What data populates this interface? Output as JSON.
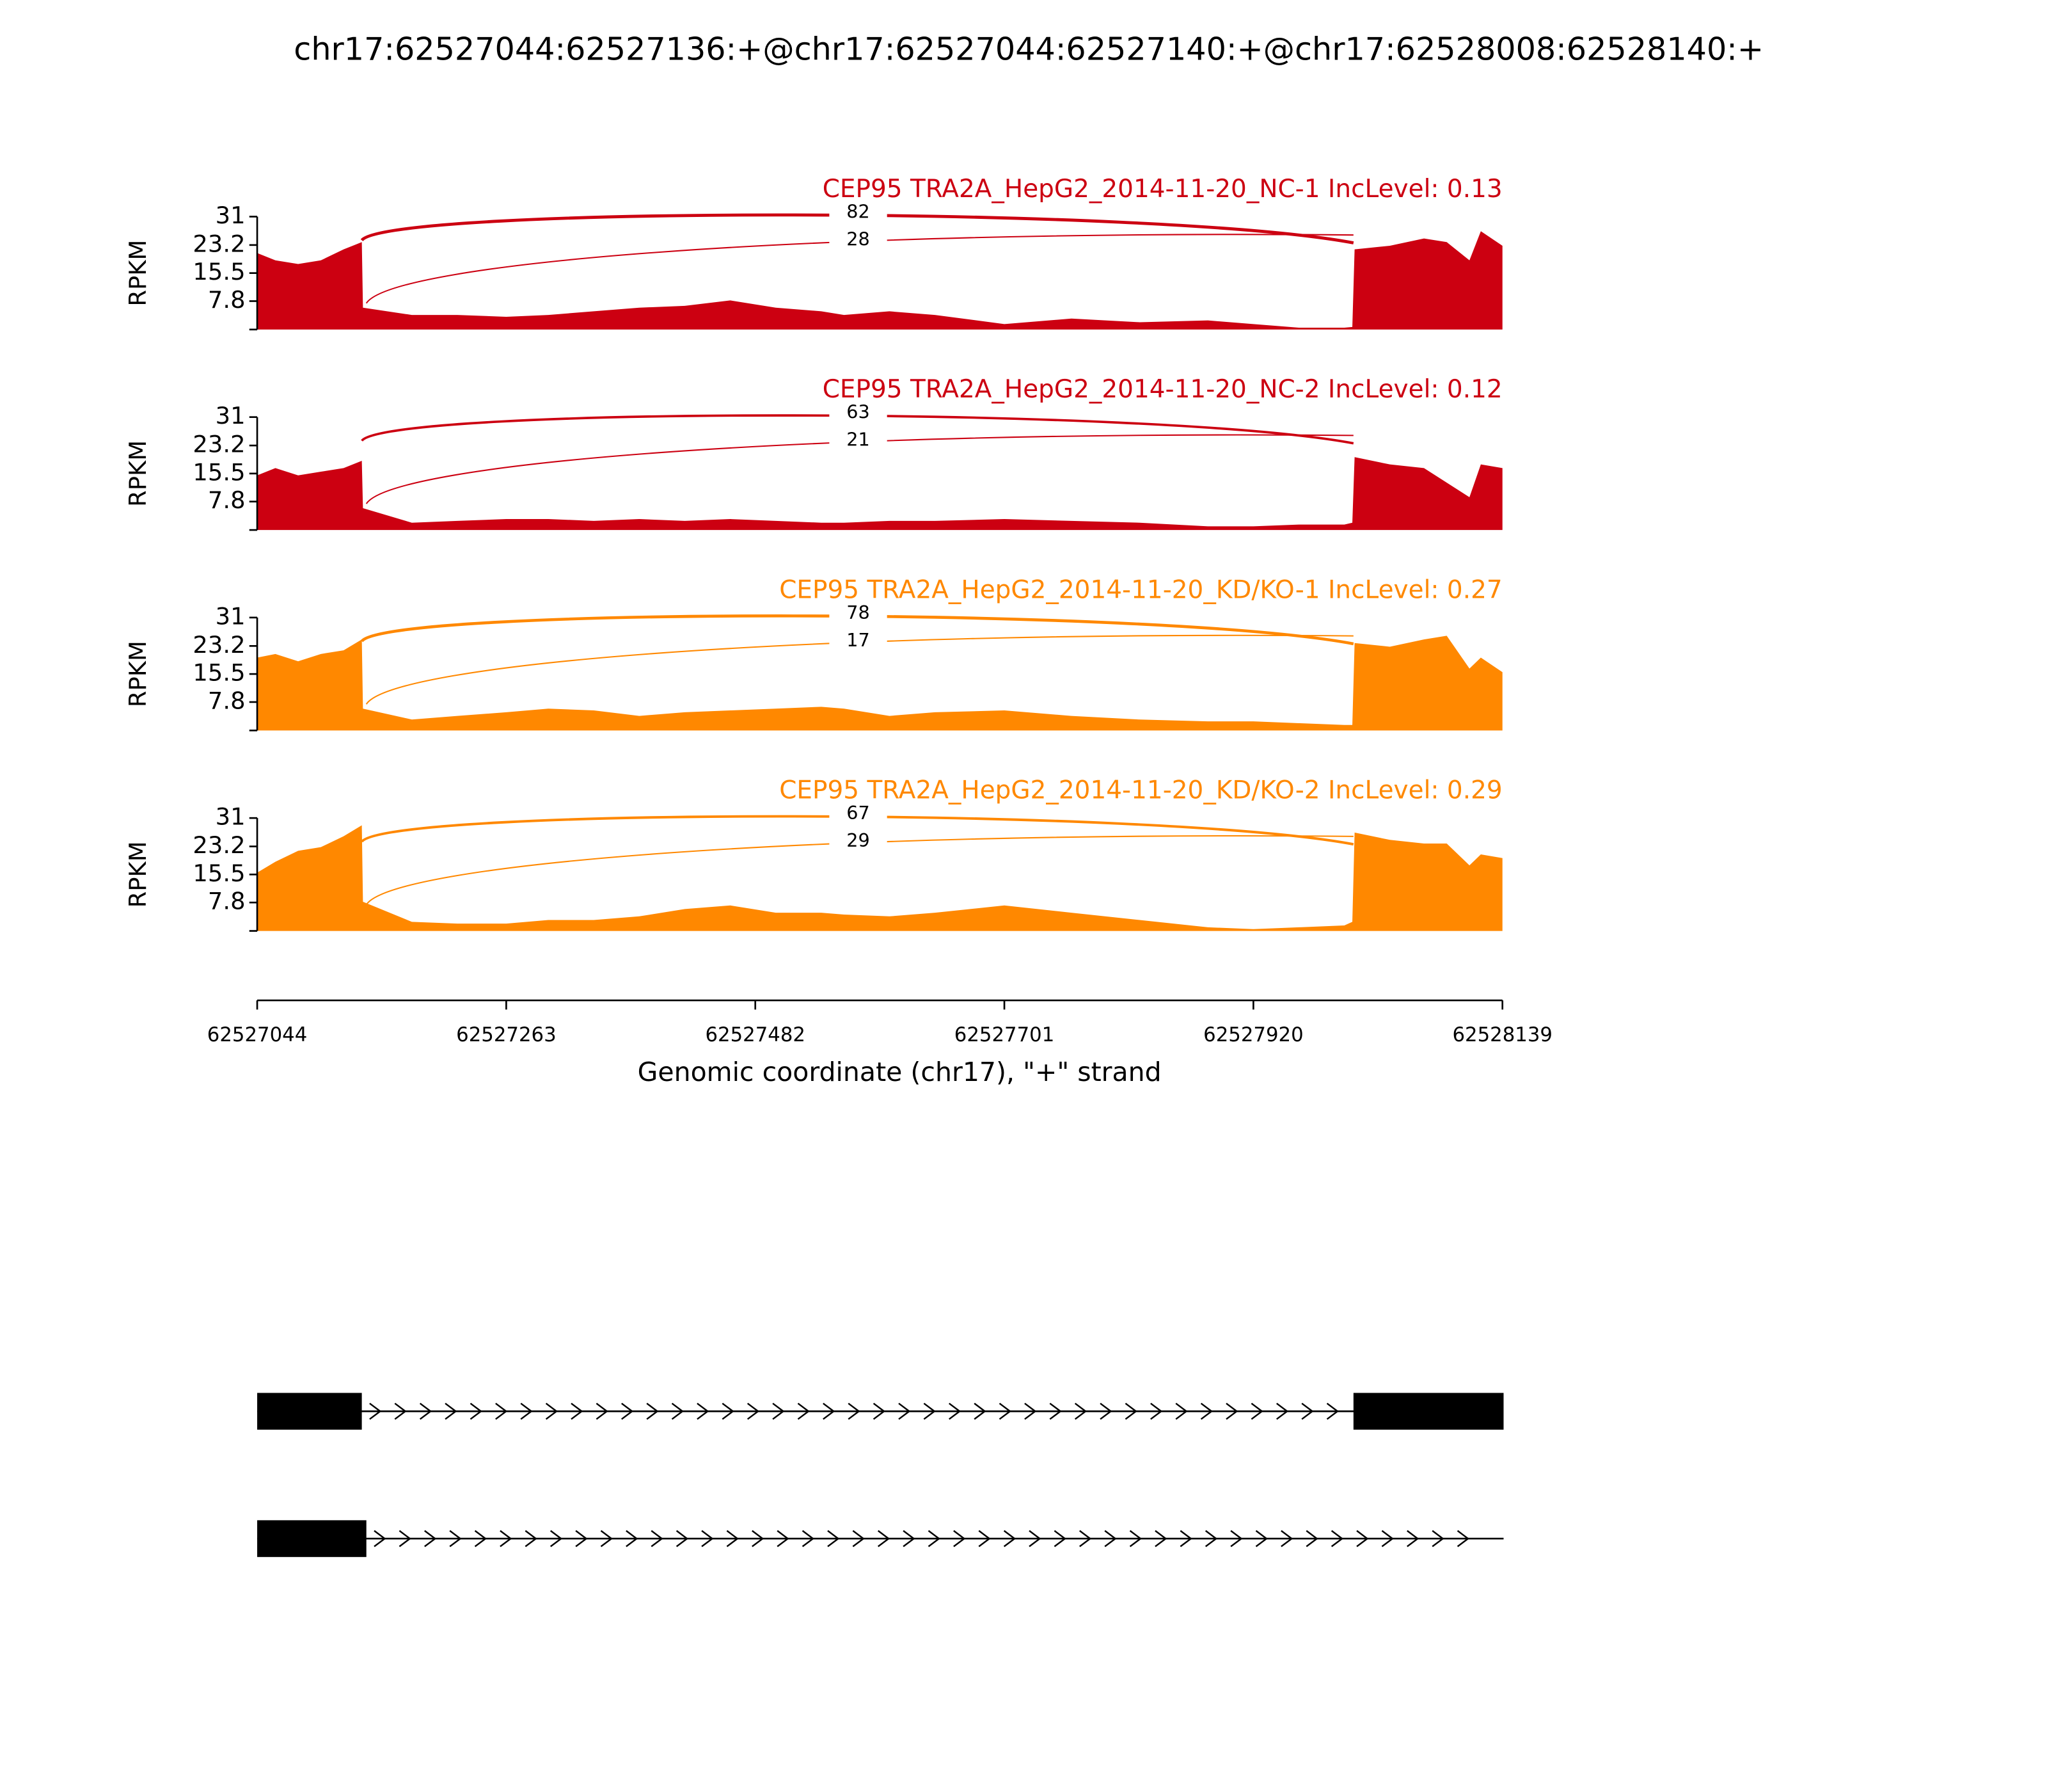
{
  "title": "chr17:62527044:62527136:+@chr17:62527044:62527140:+@chr17:62528008:62528140:+",
  "chart_data": [
    {
      "type": "area",
      "title": "CEP95 TRA2A_HepG2_2014-11-20_NC-1 IncLevel: 0.13",
      "y_label": "RPKM",
      "color": "#cc0011",
      "xlim": [
        62527044,
        62528139
      ],
      "ylim": [
        0,
        31
      ],
      "yticks": [
        7.8,
        15.5,
        23.2,
        31
      ],
      "x": [
        62527044,
        62527060,
        62527080,
        62527100,
        62527120,
        62527136,
        62527137,
        62527180,
        62527220,
        62527263,
        62527300,
        62527340,
        62527380,
        62527420,
        62527460,
        62527500,
        62527540,
        62527560,
        62527600,
        62527640,
        62527701,
        62527760,
        62527820,
        62527880,
        62527920,
        62527960,
        62528000,
        62528007,
        62528009,
        62528040,
        62528070,
        62528090,
        62528110,
        62528120,
        62528139
      ],
      "values": [
        21,
        19,
        18,
        19,
        22,
        24,
        6,
        4,
        4,
        3.5,
        4,
        5,
        6,
        6.5,
        8,
        6,
        5,
        4,
        5,
        4,
        1.5,
        3,
        2,
        2.5,
        1.5,
        0.5,
        0.5,
        0.7,
        22,
        23,
        25,
        24,
        19,
        27,
        23
      ],
      "junctions": [
        {
          "start": 62527136,
          "end": 62528008,
          "count": 82
        },
        {
          "start": 62527140,
          "end": 62528008,
          "count": 28
        }
      ]
    },
    {
      "type": "area",
      "title": "CEP95 TRA2A_HepG2_2014-11-20_NC-2 IncLevel: 0.12",
      "y_label": "RPKM",
      "color": "#cc0011",
      "xlim": [
        62527044,
        62528139
      ],
      "ylim": [
        0,
        31
      ],
      "yticks": [
        7.8,
        15.5,
        23.2,
        31
      ],
      "x": [
        62527044,
        62527060,
        62527080,
        62527100,
        62527120,
        62527136,
        62527137,
        62527180,
        62527220,
        62527263,
        62527300,
        62527340,
        62527380,
        62527420,
        62527460,
        62527500,
        62527540,
        62527560,
        62527600,
        62527640,
        62527701,
        62527760,
        62527820,
        62527880,
        62527920,
        62527960,
        62528000,
        62528007,
        62528009,
        62528040,
        62528070,
        62528090,
        62528110,
        62528120,
        62528139
      ],
      "values": [
        15,
        17,
        15,
        16,
        17,
        19,
        6,
        2,
        2.5,
        3,
        3,
        2.5,
        3,
        2.5,
        3,
        2.5,
        2,
        2,
        2.5,
        2.5,
        3,
        2.5,
        2,
        1,
        1,
        1.5,
        1.5,
        2,
        20,
        18,
        17,
        13,
        9,
        18,
        17
      ],
      "junctions": [
        {
          "start": 62527136,
          "end": 62528008,
          "count": 63
        },
        {
          "start": 62527140,
          "end": 62528008,
          "count": 21
        }
      ]
    },
    {
      "type": "area",
      "title": "CEP95 TRA2A_HepG2_2014-11-20_KD/KO-1 IncLevel: 0.27",
      "y_label": "RPKM",
      "color": "#ff8800",
      "xlim": [
        62527044,
        62528139
      ],
      "ylim": [
        0,
        31
      ],
      "yticks": [
        7.8,
        15.5,
        23.2,
        31
      ],
      "x": [
        62527044,
        62527060,
        62527080,
        62527100,
        62527120,
        62527136,
        62527137,
        62527180,
        62527220,
        62527263,
        62527300,
        62527340,
        62527380,
        62527420,
        62527460,
        62527500,
        62527540,
        62527560,
        62527600,
        62527640,
        62527701,
        62527760,
        62527820,
        62527880,
        62527920,
        62527960,
        62528000,
        62528007,
        62528009,
        62528040,
        62528070,
        62528090,
        62528110,
        62528120,
        62528139
      ],
      "values": [
        20,
        21,
        19,
        21,
        22,
        25,
        6,
        3,
        4,
        5,
        6,
        5.5,
        4,
        5,
        5.5,
        6,
        6.5,
        6,
        4,
        5,
        5.5,
        4,
        3,
        2.5,
        2.5,
        2,
        1.5,
        1.5,
        24,
        23,
        25,
        26,
        17,
        20,
        16
      ],
      "junctions": [
        {
          "start": 62527136,
          "end": 62528008,
          "count": 78
        },
        {
          "start": 62527140,
          "end": 62528008,
          "count": 17
        }
      ]
    },
    {
      "type": "area",
      "title": "CEP95 TRA2A_HepG2_2014-11-20_KD/KO-2 IncLevel: 0.29",
      "y_label": "RPKM",
      "color": "#ff8800",
      "xlim": [
        62527044,
        62528139
      ],
      "ylim": [
        0,
        31
      ],
      "yticks": [
        7.8,
        15.5,
        23.2,
        31
      ],
      "x": [
        62527044,
        62527060,
        62527080,
        62527100,
        62527120,
        62527136,
        62527137,
        62527180,
        62527220,
        62527263,
        62527300,
        62527340,
        62527380,
        62527420,
        62527460,
        62527500,
        62527540,
        62527560,
        62527600,
        62527640,
        62527701,
        62527760,
        62527820,
        62527880,
        62527920,
        62527960,
        62528000,
        62528007,
        62528009,
        62528040,
        62528070,
        62528090,
        62528110,
        62528120,
        62528139
      ],
      "values": [
        16,
        19,
        22,
        23,
        26,
        29,
        8,
        2.5,
        2,
        2,
        3,
        3,
        4,
        6,
        7,
        5,
        5,
        4.5,
        4,
        5,
        7,
        5,
        3,
        1,
        0.5,
        1,
        1.5,
        2.5,
        27,
        25,
        24,
        24,
        18,
        21,
        20
      ],
      "junctions": [
        {
          "start": 62527136,
          "end": 62528008,
          "count": 67
        },
        {
          "start": 62527140,
          "end": 62528008,
          "count": 29
        }
      ]
    },
    {
      "type": "gene_model",
      "x_label": "Genomic coordinate (chr17), \"+\" strand",
      "xlim": [
        62527044,
        62528139
      ],
      "xticks": [
        62527044,
        62527263,
        62527482,
        62527701,
        62527920,
        62528139
      ],
      "transcripts": [
        {
          "exons": [
            [
              62527044,
              62527136
            ],
            [
              62528008,
              62528140
            ]
          ],
          "span": [
            62527044,
            62528140
          ]
        },
        {
          "exons": [
            [
              62527044,
              62527140
            ]
          ],
          "span": [
            62527044,
            62528140
          ]
        }
      ]
    }
  ]
}
